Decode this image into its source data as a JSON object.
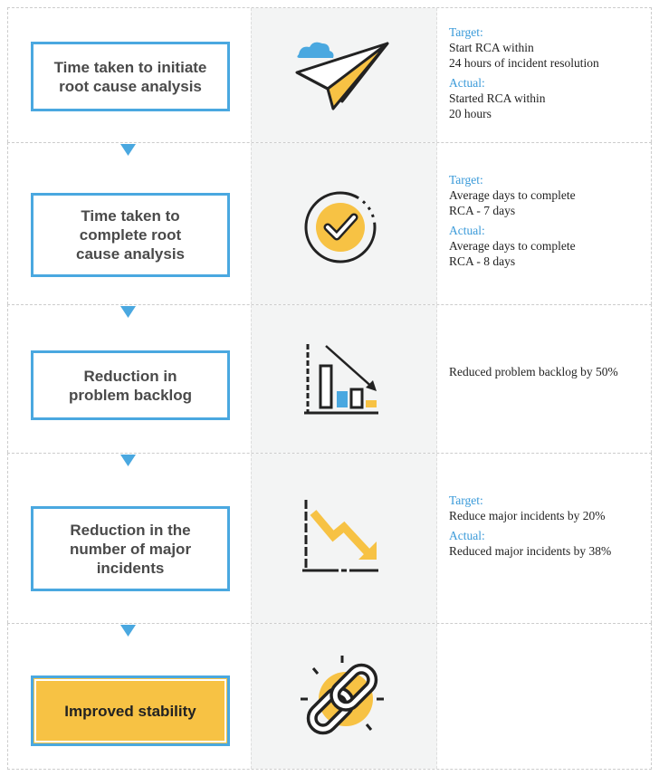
{
  "steps": [
    {
      "title": [
        "Time taken to initiate",
        "root cause analysis"
      ],
      "details": [
        {
          "label": "Target:",
          "lines": [
            "Start RCA within",
            "24 hours of incident resolution"
          ]
        },
        {
          "label": "Actual:",
          "lines": [
            "Started RCA within",
            "20 hours"
          ]
        }
      ]
    },
    {
      "title": [
        "Time taken to",
        "complete root",
        "cause analysis"
      ],
      "details": [
        {
          "label": "Target:",
          "lines": [
            "Average days to complete",
            "RCA - 7 days"
          ]
        },
        {
          "label": "Actual:",
          "lines": [
            "Average days to complete",
            "RCA - 8 days"
          ]
        }
      ]
    },
    {
      "title": [
        "Reduction in",
        "problem backlog"
      ],
      "details": [
        {
          "lines": [
            "Reduced problem backlog by 50%"
          ]
        }
      ]
    },
    {
      "title": [
        "Reduction in the",
        "number of major",
        "incidents"
      ],
      "details": [
        {
          "label": "Target:",
          "lines": [
            "Reduce major incidents by 20%"
          ]
        },
        {
          "label": "Actual:",
          "lines": [
            "Reduced major incidents by 38%"
          ]
        }
      ]
    },
    {
      "title": [
        "Improved stability"
      ],
      "details": []
    }
  ]
}
